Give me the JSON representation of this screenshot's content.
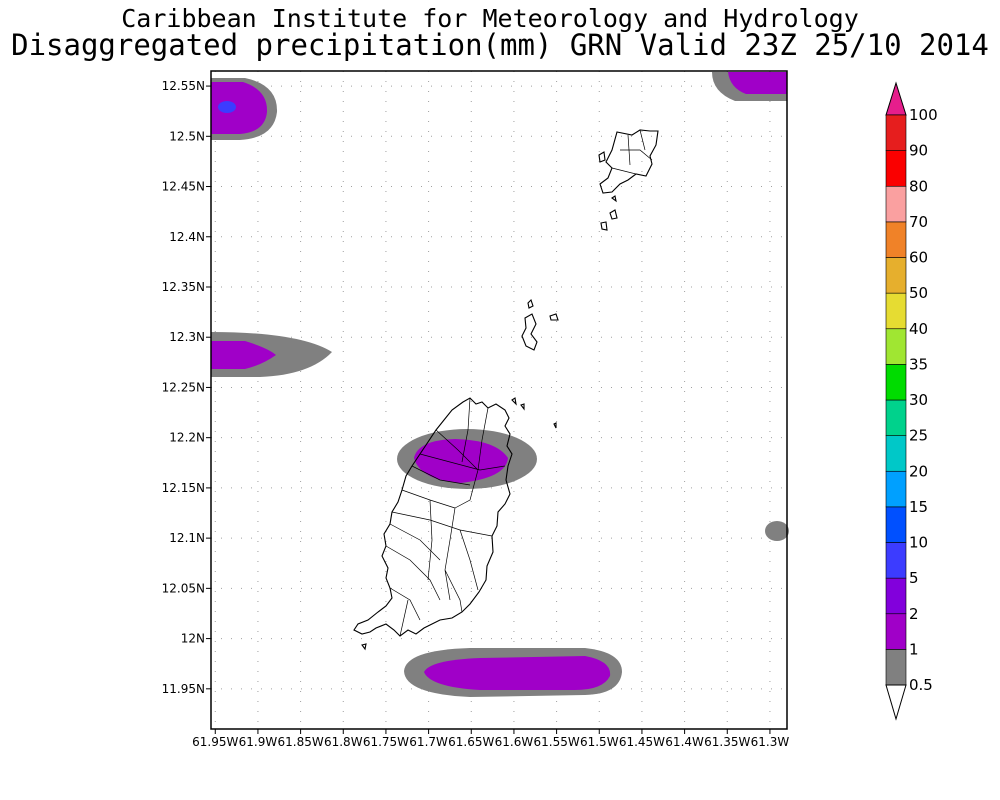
{
  "header": {
    "line1": "Caribbean Institute for Meteorology and Hydrology",
    "line2": "Disaggregated precipitation(mm) GRN Valid 23Z 25/10 2014"
  },
  "map": {
    "lat_labels": [
      "12.55N",
      "12.5N",
      "12.45N",
      "12.4N",
      "12.35N",
      "12.3N",
      "12.25N",
      "12.2N",
      "12.15N",
      "12.1N",
      "12.05N",
      "12N",
      "11.95N"
    ],
    "lon_labels": [
      "61.95W",
      "61.9W",
      "61.85W",
      "61.8W",
      "61.75W",
      "61.7W",
      "61.65W",
      "61.6W",
      "61.55W",
      "61.5W",
      "61.45W",
      "61.4W",
      "61.35W",
      "61.3W"
    ],
    "lon_range": [
      -61.955,
      -61.28
    ],
    "lat_range": [
      11.91,
      12.565
    ],
    "grid": "dotted",
    "land_features": [
      "Grenada",
      "Carriacou",
      "Grenadine islets"
    ]
  },
  "colorbar": {
    "levels": [
      {
        "label": "0.5",
        "color": "#808080"
      },
      {
        "label": "1",
        "color": "#a000c8"
      },
      {
        "label": "2",
        "color": "#8200dc"
      },
      {
        "label": "5",
        "color": "#3c3cff"
      },
      {
        "label": "10",
        "color": "#0050ff"
      },
      {
        "label": "15",
        "color": "#00a0ff"
      },
      {
        "label": "20",
        "color": "#00c8c8"
      },
      {
        "label": "25",
        "color": "#00d28c"
      },
      {
        "label": "30",
        "color": "#00dc00"
      },
      {
        "label": "35",
        "color": "#a0e632"
      },
      {
        "label": "40",
        "color": "#e6dc32"
      },
      {
        "label": "50",
        "color": "#e6af2d"
      },
      {
        "label": "60",
        "color": "#f08228"
      },
      {
        "label": "70",
        "color": "#faa0a0"
      },
      {
        "label": "80",
        "color": "#fa0000"
      },
      {
        "label": "90",
        "color": "#e61e1e"
      },
      {
        "label": "100",
        "color": "#f03c3c"
      }
    ],
    "top_arrow_color": "#e61e8c",
    "bottom_arrow_color": "#ffffff"
  }
}
